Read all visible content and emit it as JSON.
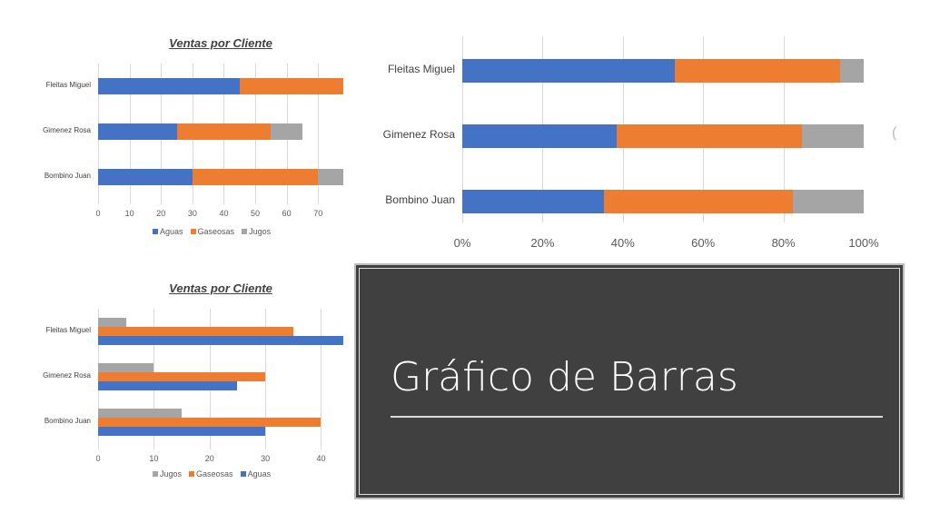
{
  "slide": {
    "title": "Gráfico de Barras",
    "stray_mark": "("
  },
  "colors": {
    "Aguas": "#4472c4",
    "Gaseosas": "#ed7d31",
    "Jugos": "#a5a5a5"
  },
  "chart_data": [
    {
      "type": "bar",
      "subtype": "stacked-horizontal",
      "title": "Ventas por Cliente",
      "categories": [
        "Fleitas Miguel",
        "Gimenez Rosa",
        "Bombino Juan"
      ],
      "series": [
        {
          "name": "Aguas",
          "values": [
            45,
            25,
            30
          ]
        },
        {
          "name": "Gaseosas",
          "values": [
            35,
            30,
            40
          ]
        },
        {
          "name": "Jugos",
          "values": [
            5,
            10,
            15
          ]
        }
      ],
      "xticks": [
        "0",
        "10",
        "20",
        "30",
        "40",
        "50",
        "60",
        "70"
      ],
      "xlim": [
        0,
        78
      ],
      "legend": [
        "Aguas",
        "Gaseosas",
        "Jugos"
      ],
      "legend_position": "bottom",
      "grid": true
    },
    {
      "type": "bar",
      "subtype": "100%-stacked-horizontal",
      "title": "",
      "categories": [
        "Fleitas Miguel",
        "Gimenez Rosa",
        "Bombino Juan"
      ],
      "series": [
        {
          "name": "Aguas",
          "values": [
            45,
            25,
            30
          ]
        },
        {
          "name": "Gaseosas",
          "values": [
            35,
            30,
            40
          ]
        },
        {
          "name": "Jugos",
          "values": [
            5,
            10,
            15
          ]
        }
      ],
      "xticks": [
        "0%",
        "20%",
        "40%",
        "60%",
        "80%",
        "100%"
      ],
      "xlim": [
        0,
        100
      ],
      "grid": true
    },
    {
      "type": "bar",
      "subtype": "clustered-horizontal",
      "title": "Ventas por Cliente",
      "categories": [
        "Fleitas Miguel",
        "Gimenez Rosa",
        "Bombino Juan"
      ],
      "series": [
        {
          "name": "Jugos",
          "values": [
            5,
            10,
            15
          ]
        },
        {
          "name": "Gaseosas",
          "values": [
            35,
            30,
            40
          ]
        },
        {
          "name": "Aguas",
          "values": [
            45,
            25,
            30
          ]
        }
      ],
      "xticks": [
        "0",
        "10",
        "20",
        "30",
        "40"
      ],
      "xlim": [
        0,
        44
      ],
      "legend": [
        "Jugos",
        "Gaseosas",
        "Aguas"
      ],
      "legend_position": "bottom",
      "grid": true
    }
  ]
}
